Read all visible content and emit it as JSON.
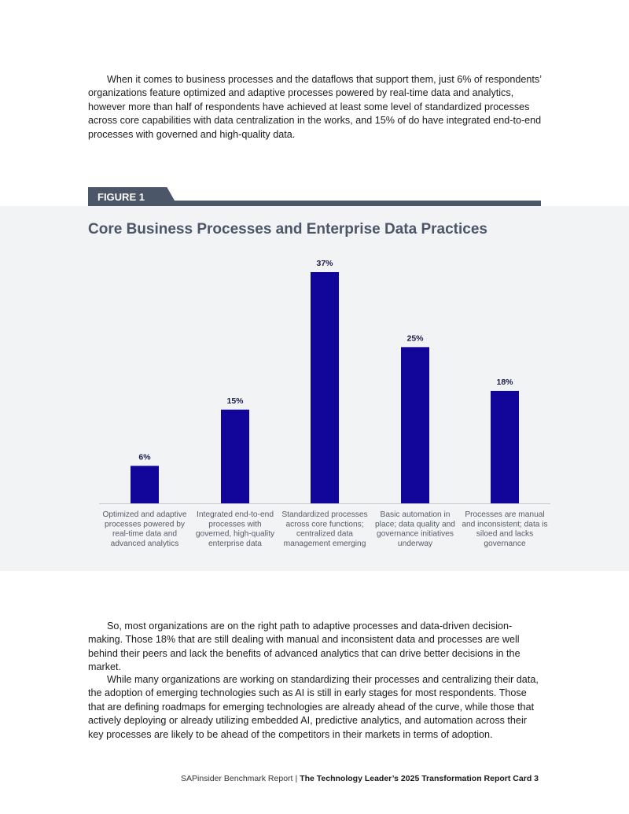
{
  "paragraphs": {
    "p1": "When it comes to business processes and the dataflows that support them, just 6% of respondents’ organizations feature optimized and adaptive processes powered by real-time data and analytics, however more than half of respondents have achieved at least some level of standardized processes across core capabilities with data centralization in the works, and 15% of do have integrated end-to-end processes with governed and high-quality data.",
    "p2": "So, most organizations are on the right path to adaptive processes and data-driven decision-making. Those 18% that are still dealing with manual and inconsistent data and processes are well behind their peers and lack the benefits of advanced analytics that can drive better decisions in the market.",
    "p3": "While many organizations are working on standardizing their processes and centralizing their data, the adoption of emerging technologies such as AI is still in early stages for most respondents. Those that are defining roadmaps for emerging technologies are already ahead of the curve, while those that actively deploying or already utilizing embedded AI, predictive analytics, and automation across their key processes are likely to be ahead of the competitors in their markets in terms of adoption."
  },
  "figure": {
    "tab_label": "FIGURE 1"
  },
  "chart_data": {
    "type": "bar",
    "title": "Core Business Processes and Enterprise Data Practices",
    "categories": [
      "Optimized and adaptive processes powered by real-time data and advanced analytics",
      "Integrated end-to-end processes with governed, high-quality enterprise data",
      "Standardized processes across core functions; centralized data management emerging",
      "Basic automation in place; data quality and governance initiatives underway",
      "Processes are manual and inconsistent; data is siloed and lacks governance"
    ],
    "category_lines": [
      [
        "Optimized and adaptive",
        "processes powered by",
        "real-time data and",
        "advanced analytics"
      ],
      [
        "Integrated end-to-end",
        "processes with",
        "governed, high-quality",
        "enterprise data"
      ],
      [
        "Standardized processes",
        "across core functions;",
        "centralized data",
        "management emerging"
      ],
      [
        "Basic automation in",
        "place; data quality and",
        "governance initiatives",
        "underway"
      ],
      [
        "Processes are manual",
        "and inconsistent; data is",
        "siloed and lacks",
        "governance"
      ]
    ],
    "values": [
      6,
      15,
      37,
      25,
      18
    ],
    "value_labels": [
      "6%",
      "15%",
      "37%",
      "25%",
      "18%"
    ],
    "ylim": [
      0,
      37
    ],
    "grid": false,
    "bar_color": "#12069a"
  },
  "footer": {
    "source": "SAPinsider Benchmark Report",
    "separator": "|",
    "title": "The Technology Leader’s 2025 Transformation Report Card 3"
  }
}
